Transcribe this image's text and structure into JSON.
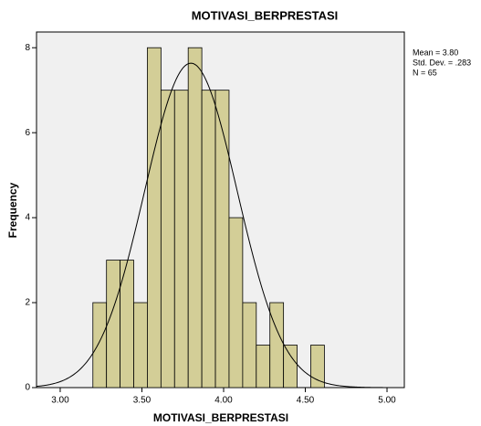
{
  "chart_data": {
    "type": "histogram",
    "title": "MOTIVASI_BERPRESTASI",
    "x_label": "MOTIVASI_BERPRESTASI",
    "y_label": "Frequency",
    "bins": [
      3.2,
      3.2833,
      3.3667,
      3.45,
      3.5333,
      3.6167,
      3.7,
      3.7833,
      3.8667,
      3.95,
      4.0333,
      4.1167,
      4.2,
      4.2833,
      4.3667,
      4.45,
      4.5333,
      4.6167
    ],
    "values": [
      2,
      3,
      3,
      2,
      8,
      7,
      7,
      8,
      7,
      7,
      4,
      2,
      1,
      2,
      1,
      0,
      1
    ],
    "color": "#d3ce97",
    "curve_color": "#000000",
    "stats": [
      {
        "value": 3.8,
        "label": "Mean = 3.80"
      },
      {
        "value": 0.283,
        "label": "Std. Dev. = .283"
      },
      {
        "value": 65,
        "label": "N = 65"
      }
    ],
    "xlim": [
      2.855,
      5.106
    ],
    "ylim": [
      0,
      8.37
    ],
    "xticks": [
      {
        "value": 3,
        "label": "3.00"
      },
      {
        "value": 3.5,
        "label": "3.50"
      },
      {
        "value": 4,
        "label": "4.00"
      },
      {
        "value": 4.5,
        "label": "4.50"
      },
      {
        "value": 5,
        "label": "5.00"
      }
    ],
    "yticks": [
      0,
      2,
      4,
      6,
      8
    ]
  }
}
